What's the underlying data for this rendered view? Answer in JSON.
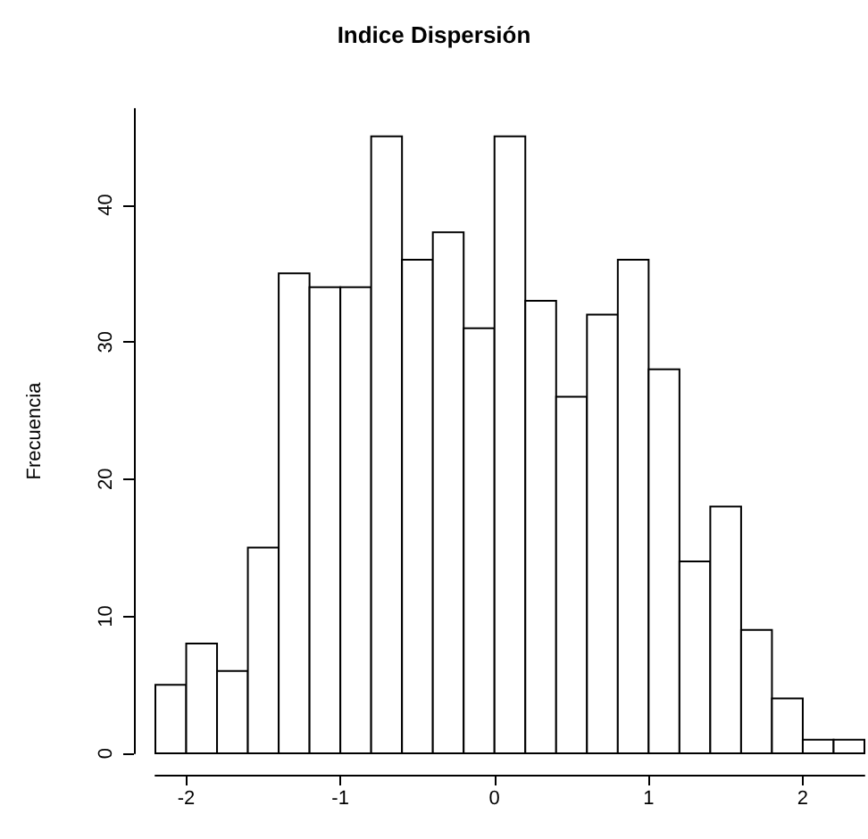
{
  "chart_data": {
    "type": "histogram",
    "title": "Indice Dispersión",
    "ylabel": "Frecuencia",
    "bins": [
      -2.2,
      -2.0,
      -1.8,
      -1.6,
      -1.4,
      -1.2,
      -1.0,
      -0.8,
      -0.6,
      -0.4,
      -0.2,
      0.0,
      0.2,
      0.4,
      0.6,
      0.8,
      1.0,
      1.2,
      1.4,
      1.6,
      1.8,
      2.0,
      2.2,
      2.4
    ],
    "values": [
      5,
      8,
      6,
      15,
      35,
      34,
      34,
      45,
      36,
      38,
      31,
      45,
      33,
      26,
      32,
      36,
      28,
      14,
      18,
      9,
      4,
      1,
      1
    ],
    "color": "#ffffff",
    "xlim": [
      -2.2,
      2.4
    ],
    "xticks": [
      -2,
      -1,
      0,
      1,
      2
    ],
    "ylim": [
      0,
      47
    ],
    "yticks": [
      0,
      10,
      20,
      30,
      40
    ],
    "grid": false
  }
}
